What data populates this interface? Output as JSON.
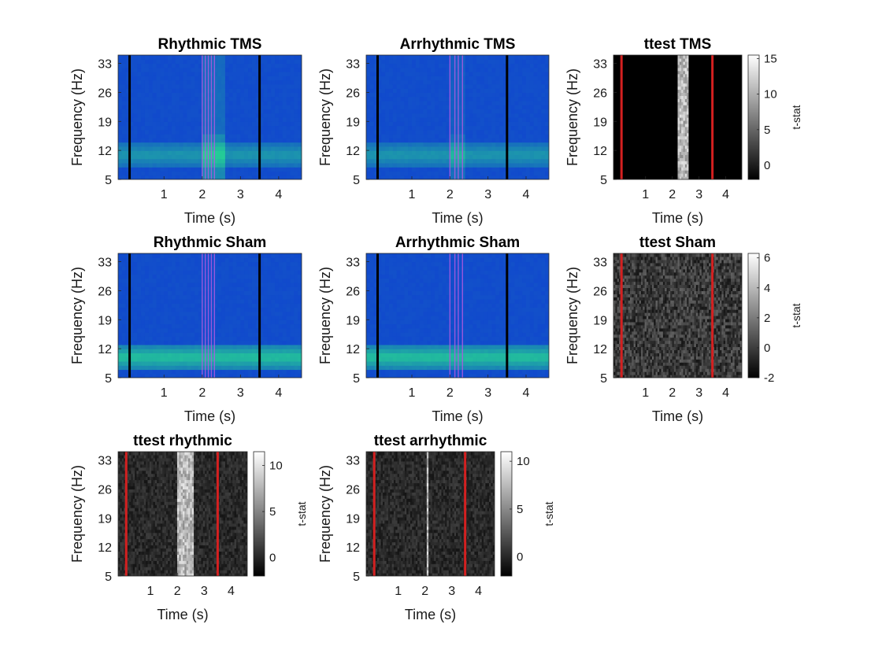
{
  "chart_data": [
    {
      "id": "rhythmic-tms",
      "type": "heatmap",
      "style": "spectrogram",
      "title": "Rhythmic TMS",
      "xlabel": "Time (s)",
      "ylabel": "Frequency (Hz)",
      "xlim": [
        -0.2,
        4.6
      ],
      "ylim": [
        5,
        35
      ],
      "xticks": [
        1,
        2,
        3,
        4
      ],
      "yticks": [
        5,
        12,
        19,
        26,
        33
      ],
      "markers": [
        0.1,
        3.5
      ],
      "marker_color": "#000000",
      "pulse_lines": [
        2.0,
        2.08,
        2.16,
        2.24,
        2.32
      ],
      "highlight": [
        2.0,
        2.6
      ],
      "band": [
        8,
        14
      ],
      "band_strength": 0.45,
      "highlight_strength": 0.35
    },
    {
      "id": "arrhythmic-tms",
      "type": "heatmap",
      "style": "spectrogram",
      "title": "Arrhythmic TMS",
      "xlabel": "Time (s)",
      "ylabel": "Frequency (Hz)",
      "xlim": [
        -0.2,
        4.6
      ],
      "ylim": [
        5,
        35
      ],
      "xticks": [
        1,
        2,
        3,
        4
      ],
      "yticks": [
        5,
        12,
        19,
        26,
        33
      ],
      "markers": [
        0.1,
        3.5
      ],
      "marker_color": "#000000",
      "pulse_lines": [
        2.0,
        2.13,
        2.22,
        2.33
      ],
      "highlight": [
        2.0,
        2.4
      ],
      "band": [
        8,
        14
      ],
      "band_strength": 0.45,
      "highlight_strength": 0.2
    },
    {
      "id": "ttest-tms",
      "type": "heatmap",
      "style": "tstat",
      "title": "ttest TMS",
      "xlabel": "Time (s)",
      "ylabel": "Frequency (Hz)",
      "xlim": [
        -0.2,
        4.6
      ],
      "ylim": [
        5,
        35
      ],
      "xticks": [
        1,
        2,
        3,
        4
      ],
      "yticks": [
        5,
        12,
        19,
        26,
        33
      ],
      "markers": [
        0.1,
        3.5
      ],
      "marker_color": "#d42020",
      "colorbar": {
        "label": "t-stat",
        "clim": [
          -2,
          15.5
        ],
        "ticks": [
          0,
          5,
          10,
          15
        ]
      },
      "highlight": [
        2.2,
        2.6
      ],
      "noise": 0.0
    },
    {
      "id": "rhythmic-sham",
      "type": "heatmap",
      "style": "spectrogram",
      "title": "Rhythmic Sham",
      "xlabel": "Time (s)",
      "ylabel": "Frequency (Hz)",
      "xlim": [
        -0.2,
        4.6
      ],
      "ylim": [
        5,
        35
      ],
      "xticks": [
        1,
        2,
        3,
        4
      ],
      "yticks": [
        5,
        12,
        19,
        26,
        33
      ],
      "markers": [
        0.1,
        3.5
      ],
      "marker_color": "#000000",
      "pulse_lines": [
        2.0,
        2.08,
        2.16,
        2.24,
        2.32
      ],
      "highlight": [
        2.0,
        2.4
      ],
      "band": [
        7,
        13
      ],
      "band_strength": 0.7,
      "highlight_strength": 0.0
    },
    {
      "id": "arrhythmic-sham",
      "type": "heatmap",
      "style": "spectrogram",
      "title": "Arrhythmic Sham",
      "xlabel": "Time (s)",
      "ylabel": "Frequency (Hz)",
      "xlim": [
        -0.2,
        4.6
      ],
      "ylim": [
        5,
        35
      ],
      "xticks": [
        1,
        2,
        3,
        4
      ],
      "yticks": [
        5,
        12,
        19,
        26,
        33
      ],
      "markers": [
        0.1,
        3.5
      ],
      "marker_color": "#000000",
      "pulse_lines": [
        2.0,
        2.13,
        2.22,
        2.33
      ],
      "highlight": [
        2.0,
        2.4
      ],
      "band": [
        7,
        13
      ],
      "band_strength": 0.7,
      "highlight_strength": 0.0
    },
    {
      "id": "ttest-sham",
      "type": "heatmap",
      "style": "tstat",
      "title": "ttest Sham",
      "xlabel": "Time (s)",
      "ylabel": "Frequency (Hz)",
      "xlim": [
        -0.2,
        4.6
      ],
      "ylim": [
        5,
        35
      ],
      "xticks": [
        1,
        2,
        3,
        4
      ],
      "yticks": [
        5,
        12,
        19,
        26,
        33
      ],
      "markers": [
        0.1,
        3.5
      ],
      "marker_color": "#d42020",
      "colorbar": {
        "label": "t-stat",
        "clim": [
          -2,
          6.3
        ],
        "ticks": [
          -2,
          0,
          2,
          4,
          6
        ]
      },
      "highlight": null,
      "noise": 0.55
    },
    {
      "id": "ttest-rhythmic",
      "type": "heatmap",
      "style": "tstat",
      "title": "ttest rhythmic",
      "xlabel": "Time (s)",
      "ylabel": "Frequency (Hz)",
      "xlim": [
        -0.2,
        4.6
      ],
      "ylim": [
        5,
        35
      ],
      "xticks": [
        1,
        2,
        3,
        4
      ],
      "yticks": [
        5,
        12,
        19,
        26,
        33
      ],
      "markers": [
        0.1,
        3.5
      ],
      "marker_color": "#d42020",
      "colorbar": {
        "label": "t-stat",
        "clim": [
          -2,
          11.5
        ],
        "ticks": [
          0,
          5,
          10
        ]
      },
      "highlight": [
        2.0,
        2.6
      ],
      "noise": 0.3
    },
    {
      "id": "ttest-arrhythmic",
      "type": "heatmap",
      "style": "tstat",
      "title": "ttest arrhythmic",
      "xlabel": "Time (s)",
      "ylabel": "Frequency (Hz)",
      "xlim": [
        -0.2,
        4.6
      ],
      "ylim": [
        5,
        35
      ],
      "xticks": [
        1,
        2,
        3,
        4
      ],
      "yticks": [
        5,
        12,
        19,
        26,
        33
      ],
      "markers": [
        0.1,
        3.5
      ],
      "marker_color": "#d42020",
      "colorbar": {
        "label": "t-stat",
        "clim": [
          -2,
          11
        ],
        "ticks": [
          0,
          5,
          10
        ]
      },
      "highlight": [
        2.05,
        2.12
      ],
      "noise": 0.3
    }
  ]
}
